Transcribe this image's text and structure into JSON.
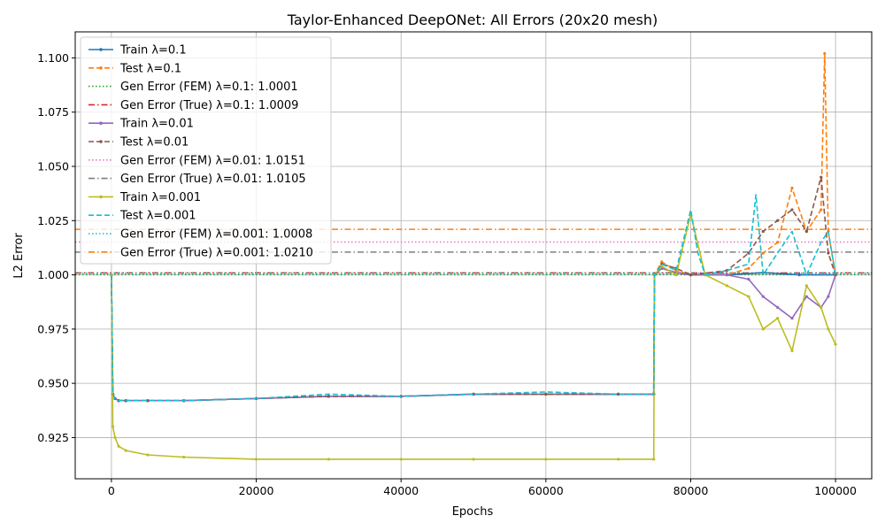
{
  "chart_data": {
    "type": "line",
    "title": "Taylor-Enhanced DeepONet: All Errors (20x20 mesh)",
    "xlabel": "Epochs",
    "ylabel": "L2 Error",
    "xlim": [
      -5000,
      105000
    ],
    "ylim": [
      0.906,
      1.112
    ],
    "xticks": [
      0,
      20000,
      40000,
      60000,
      80000,
      100000
    ],
    "xtick_labels": [
      "0",
      "20000",
      "40000",
      "60000",
      "80000",
      "100000"
    ],
    "yticks": [
      0.925,
      0.95,
      0.975,
      1.0,
      1.025,
      1.05,
      1.075,
      1.1
    ],
    "ytick_labels": [
      "0.925",
      "0.950",
      "0.975",
      "1.000",
      "1.025",
      "1.050",
      "1.075",
      "1.100"
    ],
    "grid": true,
    "legend_position": "top-left",
    "series": [
      {
        "name": "Train λ=0.1",
        "color": "#1f77b4",
        "style": "solid",
        "marker": true,
        "x": [
          0,
          200,
          500,
          1000,
          2000,
          5000,
          10000,
          20000,
          30000,
          40000,
          50000,
          60000,
          70000,
          74900,
          75000,
          76000,
          78000,
          80000,
          85000,
          90000,
          95000,
          100000
        ],
        "y": [
          1.0,
          0.945,
          0.943,
          0.942,
          0.942,
          0.942,
          0.942,
          0.943,
          0.944,
          0.944,
          0.945,
          0.945,
          0.945,
          0.945,
          1.0,
          1.003,
          1.001,
          1.0,
          1.0,
          1.001,
          1.0,
          1.0
        ]
      },
      {
        "name": "Test λ=0.1",
        "color": "#ff7f0e",
        "style": "dashed",
        "marker": true,
        "x": [
          0,
          200,
          500,
          1000,
          2000,
          5000,
          10000,
          20000,
          30000,
          40000,
          50000,
          60000,
          70000,
          74900,
          75000,
          76000,
          78000,
          80000,
          85000,
          88000,
          90000,
          92000,
          94000,
          96000,
          98000,
          98500,
          99000,
          100000
        ],
        "y": [
          1.0,
          0.945,
          0.943,
          0.942,
          0.942,
          0.942,
          0.942,
          0.943,
          0.944,
          0.944,
          0.945,
          0.945,
          0.945,
          0.945,
          1.0,
          1.006,
          1.002,
          1.0,
          1.0,
          1.003,
          1.01,
          1.015,
          1.04,
          1.02,
          1.03,
          1.102,
          1.02,
          1.0
        ]
      },
      {
        "name": "Gen Error (FEM) λ=0.1: 1.0001",
        "color": "#2ca02c",
        "style": "dotted",
        "marker": false,
        "hline": 1.0001
      },
      {
        "name": "Gen Error (True) λ=0.1: 1.0009",
        "color": "#d62728",
        "style": "dashdot",
        "marker": false,
        "hline": 1.0009
      },
      {
        "name": "Train λ=0.01",
        "color": "#9467bd",
        "style": "solid",
        "marker": true,
        "x": [
          0,
          200,
          500,
          1000,
          2000,
          5000,
          10000,
          20000,
          30000,
          40000,
          50000,
          60000,
          70000,
          74900,
          75000,
          76000,
          78000,
          80000,
          82000,
          85000,
          88000,
          90000,
          92000,
          94000,
          96000,
          98000,
          99000,
          100000
        ],
        "y": [
          1.0,
          0.945,
          0.943,
          0.942,
          0.942,
          0.942,
          0.942,
          0.943,
          0.944,
          0.944,
          0.945,
          0.945,
          0.945,
          0.945,
          1.0,
          1.003,
          1.001,
          1.0,
          1.0,
          1.0,
          0.998,
          0.99,
          0.985,
          0.98,
          0.99,
          0.985,
          0.99,
          1.0
        ]
      },
      {
        "name": "Test λ=0.01",
        "color": "#8c564b",
        "style": "dashed",
        "marker": true,
        "x": [
          0,
          200,
          500,
          1000,
          2000,
          5000,
          10000,
          20000,
          30000,
          40000,
          50000,
          60000,
          70000,
          74900,
          75000,
          76000,
          78000,
          80000,
          85000,
          88000,
          90000,
          92000,
          94000,
          96000,
          98000,
          99000,
          100000
        ],
        "y": [
          1.0,
          0.945,
          0.943,
          0.942,
          0.942,
          0.942,
          0.942,
          0.943,
          0.944,
          0.944,
          0.945,
          0.945,
          0.945,
          0.945,
          1.0,
          1.005,
          1.003,
          1.0,
          1.002,
          1.01,
          1.02,
          1.025,
          1.03,
          1.02,
          1.045,
          1.01,
          1.0
        ]
      },
      {
        "name": "Gen Error (FEM) λ=0.01: 1.0151",
        "color": "#e377c2",
        "style": "dotted",
        "marker": false,
        "hline": 1.0151
      },
      {
        "name": "Gen Error (True) λ=0.01: 1.0105",
        "color": "#7f7f7f",
        "style": "dashdot",
        "marker": false,
        "hline": 1.0105
      },
      {
        "name": "Train λ=0.001",
        "color": "#bcbd22",
        "style": "solid",
        "marker": true,
        "x": [
          0,
          200,
          500,
          1000,
          2000,
          5000,
          10000,
          20000,
          30000,
          40000,
          50000,
          60000,
          70000,
          74900,
          75000,
          76000,
          78000,
          80000,
          82000,
          85000,
          88000,
          90000,
          92000,
          94000,
          96000,
          98000,
          99000,
          100000
        ],
        "y": [
          1.0,
          0.93,
          0.925,
          0.921,
          0.919,
          0.917,
          0.916,
          0.915,
          0.915,
          0.915,
          0.915,
          0.915,
          0.915,
          0.915,
          1.0,
          1.004,
          1.0,
          1.028,
          1.0,
          0.995,
          0.99,
          0.975,
          0.98,
          0.965,
          0.995,
          0.985,
          0.975,
          0.968
        ]
      },
      {
        "name": "Test λ=0.001",
        "color": "#17becf",
        "style": "dashed",
        "marker": false,
        "x": [
          0,
          200,
          500,
          1000,
          2000,
          5000,
          10000,
          20000,
          30000,
          40000,
          50000,
          60000,
          70000,
          74900,
          75000,
          76000,
          78000,
          80000,
          81000,
          82000,
          85000,
          88000,
          89000,
          90000,
          92000,
          94000,
          96000,
          98000,
          99000,
          100000
        ],
        "y": [
          1.0,
          0.945,
          0.943,
          0.942,
          0.942,
          0.942,
          0.942,
          0.943,
          0.945,
          0.944,
          0.945,
          0.946,
          0.945,
          0.945,
          1.0,
          1.005,
          1.002,
          1.03,
          1.01,
          1.0,
          1.002,
          1.005,
          1.037,
          1.0,
          1.01,
          1.02,
          1.0,
          1.015,
          1.02,
          1.0
        ]
      },
      {
        "name": "Gen Error (FEM) λ=0.001: 1.0008",
        "color": "#17becf",
        "style": "dotted",
        "marker": false,
        "hline": 1.0008
      },
      {
        "name": "Gen Error (True) λ=0.001: 1.0210",
        "color": "#ff7f0e",
        "style": "dashdot",
        "marker": false,
        "hline": 1.021
      }
    ]
  }
}
